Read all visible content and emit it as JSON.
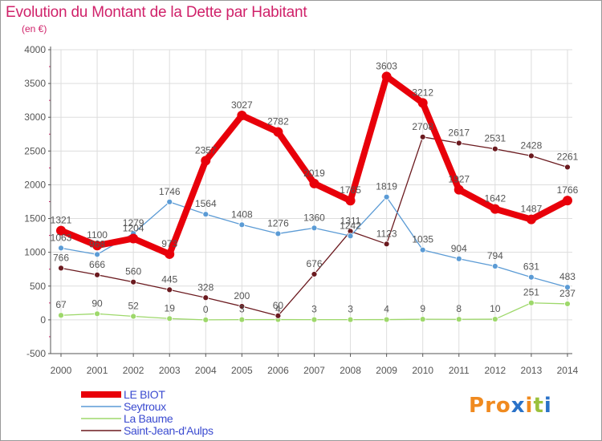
{
  "title": "Evolution du Montant de la Dette par Habitant",
  "subtitle": "(en €)",
  "colors": {
    "title": "#d0226a",
    "axis": "#555555",
    "grid": "#dddddd",
    "legend_text": "#3b4bd0",
    "label": "#555555"
  },
  "logo": {
    "text": "Proxiti",
    "letter_colors": [
      "#f08a1f",
      "#f08a1f",
      "#f08a1f",
      "#2a72c8",
      "#f08a1f",
      "#9bc13c",
      "#2a72c8"
    ]
  },
  "chart_data": {
    "type": "line",
    "title": "Evolution du Montant de la Dette par Habitant",
    "subtitle": "(en €)",
    "xlabel": "",
    "ylabel": "",
    "x": [
      "2000",
      "2001",
      "2002",
      "2003",
      "2004",
      "2005",
      "2006",
      "2007",
      "2008",
      "2009",
      "2010",
      "2011",
      "2012",
      "2013",
      "2014"
    ],
    "ylim": [
      -500,
      4000
    ],
    "yticks": [
      "4000",
      "3500",
      "3000",
      "2500",
      "2000",
      "1500",
      "1000",
      "500",
      "0",
      "-500"
    ],
    "grid": true,
    "legend_position": "bottom-left",
    "series": [
      {
        "name": "LE BIOT",
        "color": "#e8000a",
        "style": "thick",
        "values": [
          1321,
          1100,
          1204,
          973,
          2357,
          3027,
          2782,
          2019,
          1765,
          3603,
          3212,
          1927,
          1642,
          1487,
          1766
        ],
        "labels": [
          "1321",
          "1100",
          "1204",
          "973",
          "2357",
          "3027",
          "2782",
          "2019",
          "1765",
          "3603",
          "3212",
          "1927",
          "1642",
          "1487",
          "1766"
        ]
      },
      {
        "name": "Seytroux",
        "color": "#5b9bd5",
        "style": "thin",
        "values": [
          1063,
          968,
          1279,
          1746,
          1564,
          1408,
          1276,
          1360,
          1242,
          1819,
          1035,
          904,
          794,
          631,
          483
        ],
        "labels": [
          "1063",
          "968",
          "1279",
          "1746",
          "1564",
          "1408",
          "1276",
          "1360",
          "1242",
          "1819",
          "1035",
          "904",
          "794",
          "631",
          "483"
        ]
      },
      {
        "name": "La Baume",
        "color": "#9ed86b",
        "style": "thin",
        "values": [
          67,
          90,
          52,
          19,
          0,
          3,
          4,
          3,
          3,
          4,
          9,
          8,
          10,
          251,
          237
        ],
        "labels": [
          "67",
          "90",
          "52",
          "19",
          "0",
          "3",
          "4",
          "3",
          "3",
          "4",
          "9",
          "8",
          "10",
          "251",
          "237"
        ]
      },
      {
        "name": "Saint-Jean-d'Aulps",
        "color": "#6b1a1f",
        "style": "thin",
        "values": [
          766,
          666,
          560,
          445,
          328,
          200,
          60,
          676,
          1311,
          1123,
          2708,
          2617,
          2531,
          2428,
          2261
        ],
        "labels": [
          "766",
          "666",
          "560",
          "445",
          "328",
          "200",
          "60",
          "676",
          "1311",
          "1123",
          "2708",
          "2617",
          "2531",
          "2428",
          "2261"
        ]
      }
    ]
  }
}
